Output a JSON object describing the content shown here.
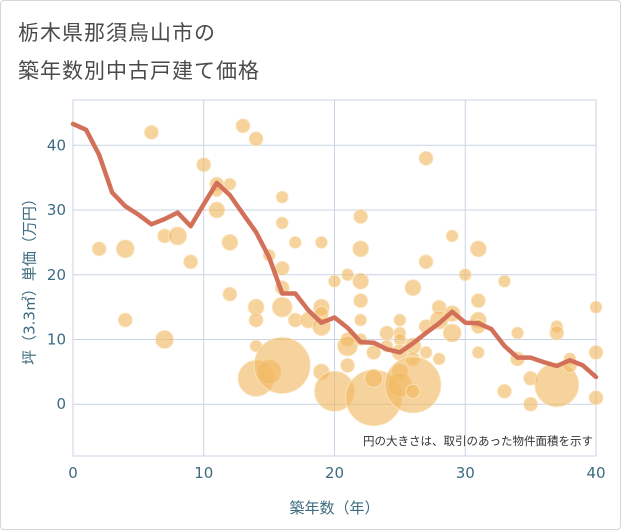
{
  "title_line1": "栃木県那須烏山市の",
  "title_line2": "築年数別中古戸建て価格",
  "chart_data": {
    "type": "scatter",
    "xlabel": "築年数（年）",
    "ylabel": "坪（3.3㎡）単価（万円）",
    "xlim": [
      0,
      40
    ],
    "ylim": [
      -8,
      47
    ],
    "xticks": [
      0,
      10,
      20,
      30,
      40
    ],
    "yticks": [
      0,
      10,
      20,
      30,
      40
    ],
    "grid": true,
    "note": "円の大きさは、取引のあった物件面積を示す",
    "colors": {
      "bubble": "#f0b860",
      "line": "#d2705a",
      "axis_text": "#3d6b80",
      "grid": "#c8d3e6"
    },
    "series": [
      {
        "type": "line",
        "x": [
          0,
          1,
          2,
          3,
          4,
          5,
          6,
          7,
          8,
          9,
          10,
          11,
          12,
          13,
          14,
          15,
          16,
          17,
          18,
          19,
          20,
          21,
          22,
          23,
          24,
          25,
          26,
          27,
          28,
          29,
          30,
          31,
          32,
          33,
          34,
          35,
          36,
          37,
          38,
          39,
          40
        ],
        "y": [
          43.3,
          42.4,
          38.5,
          32.7,
          30.6,
          29.3,
          27.8,
          28.6,
          29.6,
          27.5,
          30.9,
          34.2,
          32.3,
          29.4,
          26.6,
          22.7,
          17.1,
          17.1,
          14.5,
          12.6,
          13.4,
          11.8,
          9.6,
          9.5,
          8.5,
          8.0,
          9.4,
          11.0,
          12.5,
          14.3,
          12.6,
          12.5,
          11.6,
          9.0,
          7.2,
          7.2,
          6.5,
          5.9,
          6.8,
          6.0,
          4.2
        ]
      },
      {
        "type": "bubble",
        "points": [
          {
            "x": 2,
            "y": 24,
            "s": 7
          },
          {
            "x": 4,
            "y": 24,
            "s": 9
          },
          {
            "x": 4,
            "y": 13,
            "s": 7
          },
          {
            "x": 6,
            "y": 42,
            "s": 7
          },
          {
            "x": 7,
            "y": 26,
            "s": 7
          },
          {
            "x": 7,
            "y": 10,
            "s": 9
          },
          {
            "x": 8,
            "y": 26,
            "s": 9
          },
          {
            "x": 9,
            "y": 22,
            "s": 7
          },
          {
            "x": 10,
            "y": 37,
            "s": 7
          },
          {
            "x": 11,
            "y": 34,
            "s": 7
          },
          {
            "x": 11,
            "y": 33,
            "s": 6
          },
          {
            "x": 11,
            "y": 30,
            "s": 8
          },
          {
            "x": 12,
            "y": 34,
            "s": 6
          },
          {
            "x": 12,
            "y": 25,
            "s": 8
          },
          {
            "x": 12,
            "y": 17,
            "s": 7
          },
          {
            "x": 13,
            "y": 43,
            "s": 7
          },
          {
            "x": 14,
            "y": 41,
            "s": 7
          },
          {
            "x": 14,
            "y": 15,
            "s": 8
          },
          {
            "x": 14,
            "y": 13,
            "s": 7
          },
          {
            "x": 14,
            "y": 9,
            "s": 6
          },
          {
            "x": 14,
            "y": 4,
            "s": 18
          },
          {
            "x": 15,
            "y": 23,
            "s": 6
          },
          {
            "x": 15,
            "y": 5,
            "s": 12
          },
          {
            "x": 16,
            "y": 32,
            "s": 6
          },
          {
            "x": 16,
            "y": 28,
            "s": 6
          },
          {
            "x": 16,
            "y": 21,
            "s": 7
          },
          {
            "x": 16,
            "y": 18,
            "s": 7
          },
          {
            "x": 16,
            "y": 15,
            "s": 10
          },
          {
            "x": 16,
            "y": 6,
            "s": 28
          },
          {
            "x": 17,
            "y": 25,
            "s": 6
          },
          {
            "x": 17,
            "y": 13,
            "s": 7
          },
          {
            "x": 18,
            "y": 13,
            "s": 8
          },
          {
            "x": 19,
            "y": 25,
            "s": 6
          },
          {
            "x": 19,
            "y": 15,
            "s": 8
          },
          {
            "x": 19,
            "y": 14,
            "s": 7
          },
          {
            "x": 19,
            "y": 12,
            "s": 9
          },
          {
            "x": 19,
            "y": 5,
            "s": 8
          },
          {
            "x": 20,
            "y": 19,
            "s": 6
          },
          {
            "x": 20,
            "y": 2,
            "s": 20
          },
          {
            "x": 21,
            "y": 20,
            "s": 6
          },
          {
            "x": 21,
            "y": 10,
            "s": 7
          },
          {
            "x": 21,
            "y": 9,
            "s": 10
          },
          {
            "x": 21,
            "y": 6,
            "s": 7
          },
          {
            "x": 22,
            "y": 29,
            "s": 7
          },
          {
            "x": 22,
            "y": 24,
            "s": 8
          },
          {
            "x": 22,
            "y": 19,
            "s": 8
          },
          {
            "x": 22,
            "y": 16,
            "s": 7
          },
          {
            "x": 22,
            "y": 13,
            "s": 6
          },
          {
            "x": 22,
            "y": 10,
            "s": 6
          },
          {
            "x": 23,
            "y": 1,
            "s": 28
          },
          {
            "x": 23,
            "y": 4,
            "s": 9
          },
          {
            "x": 23,
            "y": 8,
            "s": 7
          },
          {
            "x": 24,
            "y": 11,
            "s": 7
          },
          {
            "x": 24,
            "y": 9,
            "s": 6
          },
          {
            "x": 25,
            "y": 13,
            "s": 6
          },
          {
            "x": 25,
            "y": 11,
            "s": 6
          },
          {
            "x": 25,
            "y": 10,
            "s": 6
          },
          {
            "x": 25,
            "y": 8,
            "s": 8
          },
          {
            "x": 25,
            "y": 5,
            "s": 8
          },
          {
            "x": 25,
            "y": 3,
            "s": 12
          },
          {
            "x": 26,
            "y": 18,
            "s": 8
          },
          {
            "x": 26,
            "y": 9,
            "s": 8
          },
          {
            "x": 26,
            "y": 7,
            "s": 7
          },
          {
            "x": 26,
            "y": 3,
            "s": 28
          },
          {
            "x": 26,
            "y": 2,
            "s": 7
          },
          {
            "x": 27,
            "y": 38,
            "s": 7
          },
          {
            "x": 27,
            "y": 22,
            "s": 7
          },
          {
            "x": 27,
            "y": 12,
            "s": 7
          },
          {
            "x": 27,
            "y": 8,
            "s": 6
          },
          {
            "x": 28,
            "y": 15,
            "s": 7
          },
          {
            "x": 28,
            "y": 13,
            "s": 9
          },
          {
            "x": 28,
            "y": 7,
            "s": 6
          },
          {
            "x": 29,
            "y": 26,
            "s": 6
          },
          {
            "x": 29,
            "y": 14,
            "s": 8
          },
          {
            "x": 29,
            "y": 11,
            "s": 9
          },
          {
            "x": 30,
            "y": 20,
            "s": 6
          },
          {
            "x": 31,
            "y": 24,
            "s": 8
          },
          {
            "x": 31,
            "y": 16,
            "s": 7
          },
          {
            "x": 31,
            "y": 13,
            "s": 8
          },
          {
            "x": 31,
            "y": 12,
            "s": 7
          },
          {
            "x": 31,
            "y": 8,
            "s": 6
          },
          {
            "x": 33,
            "y": 19,
            "s": 6
          },
          {
            "x": 33,
            "y": 2,
            "s": 7
          },
          {
            "x": 34,
            "y": 11,
            "s": 6
          },
          {
            "x": 34,
            "y": 7,
            "s": 7
          },
          {
            "x": 35,
            "y": 4,
            "s": 7
          },
          {
            "x": 35,
            "y": 0,
            "s": 7
          },
          {
            "x": 37,
            "y": 12,
            "s": 6
          },
          {
            "x": 37,
            "y": 11,
            "s": 7
          },
          {
            "x": 37,
            "y": 3,
            "s": 22
          },
          {
            "x": 38,
            "y": 7,
            "s": 6
          },
          {
            "x": 38,
            "y": 6,
            "s": 7
          },
          {
            "x": 40,
            "y": 15,
            "s": 6
          },
          {
            "x": 40,
            "y": 8,
            "s": 7
          },
          {
            "x": 40,
            "y": 1,
            "s": 7
          }
        ]
      }
    ]
  }
}
